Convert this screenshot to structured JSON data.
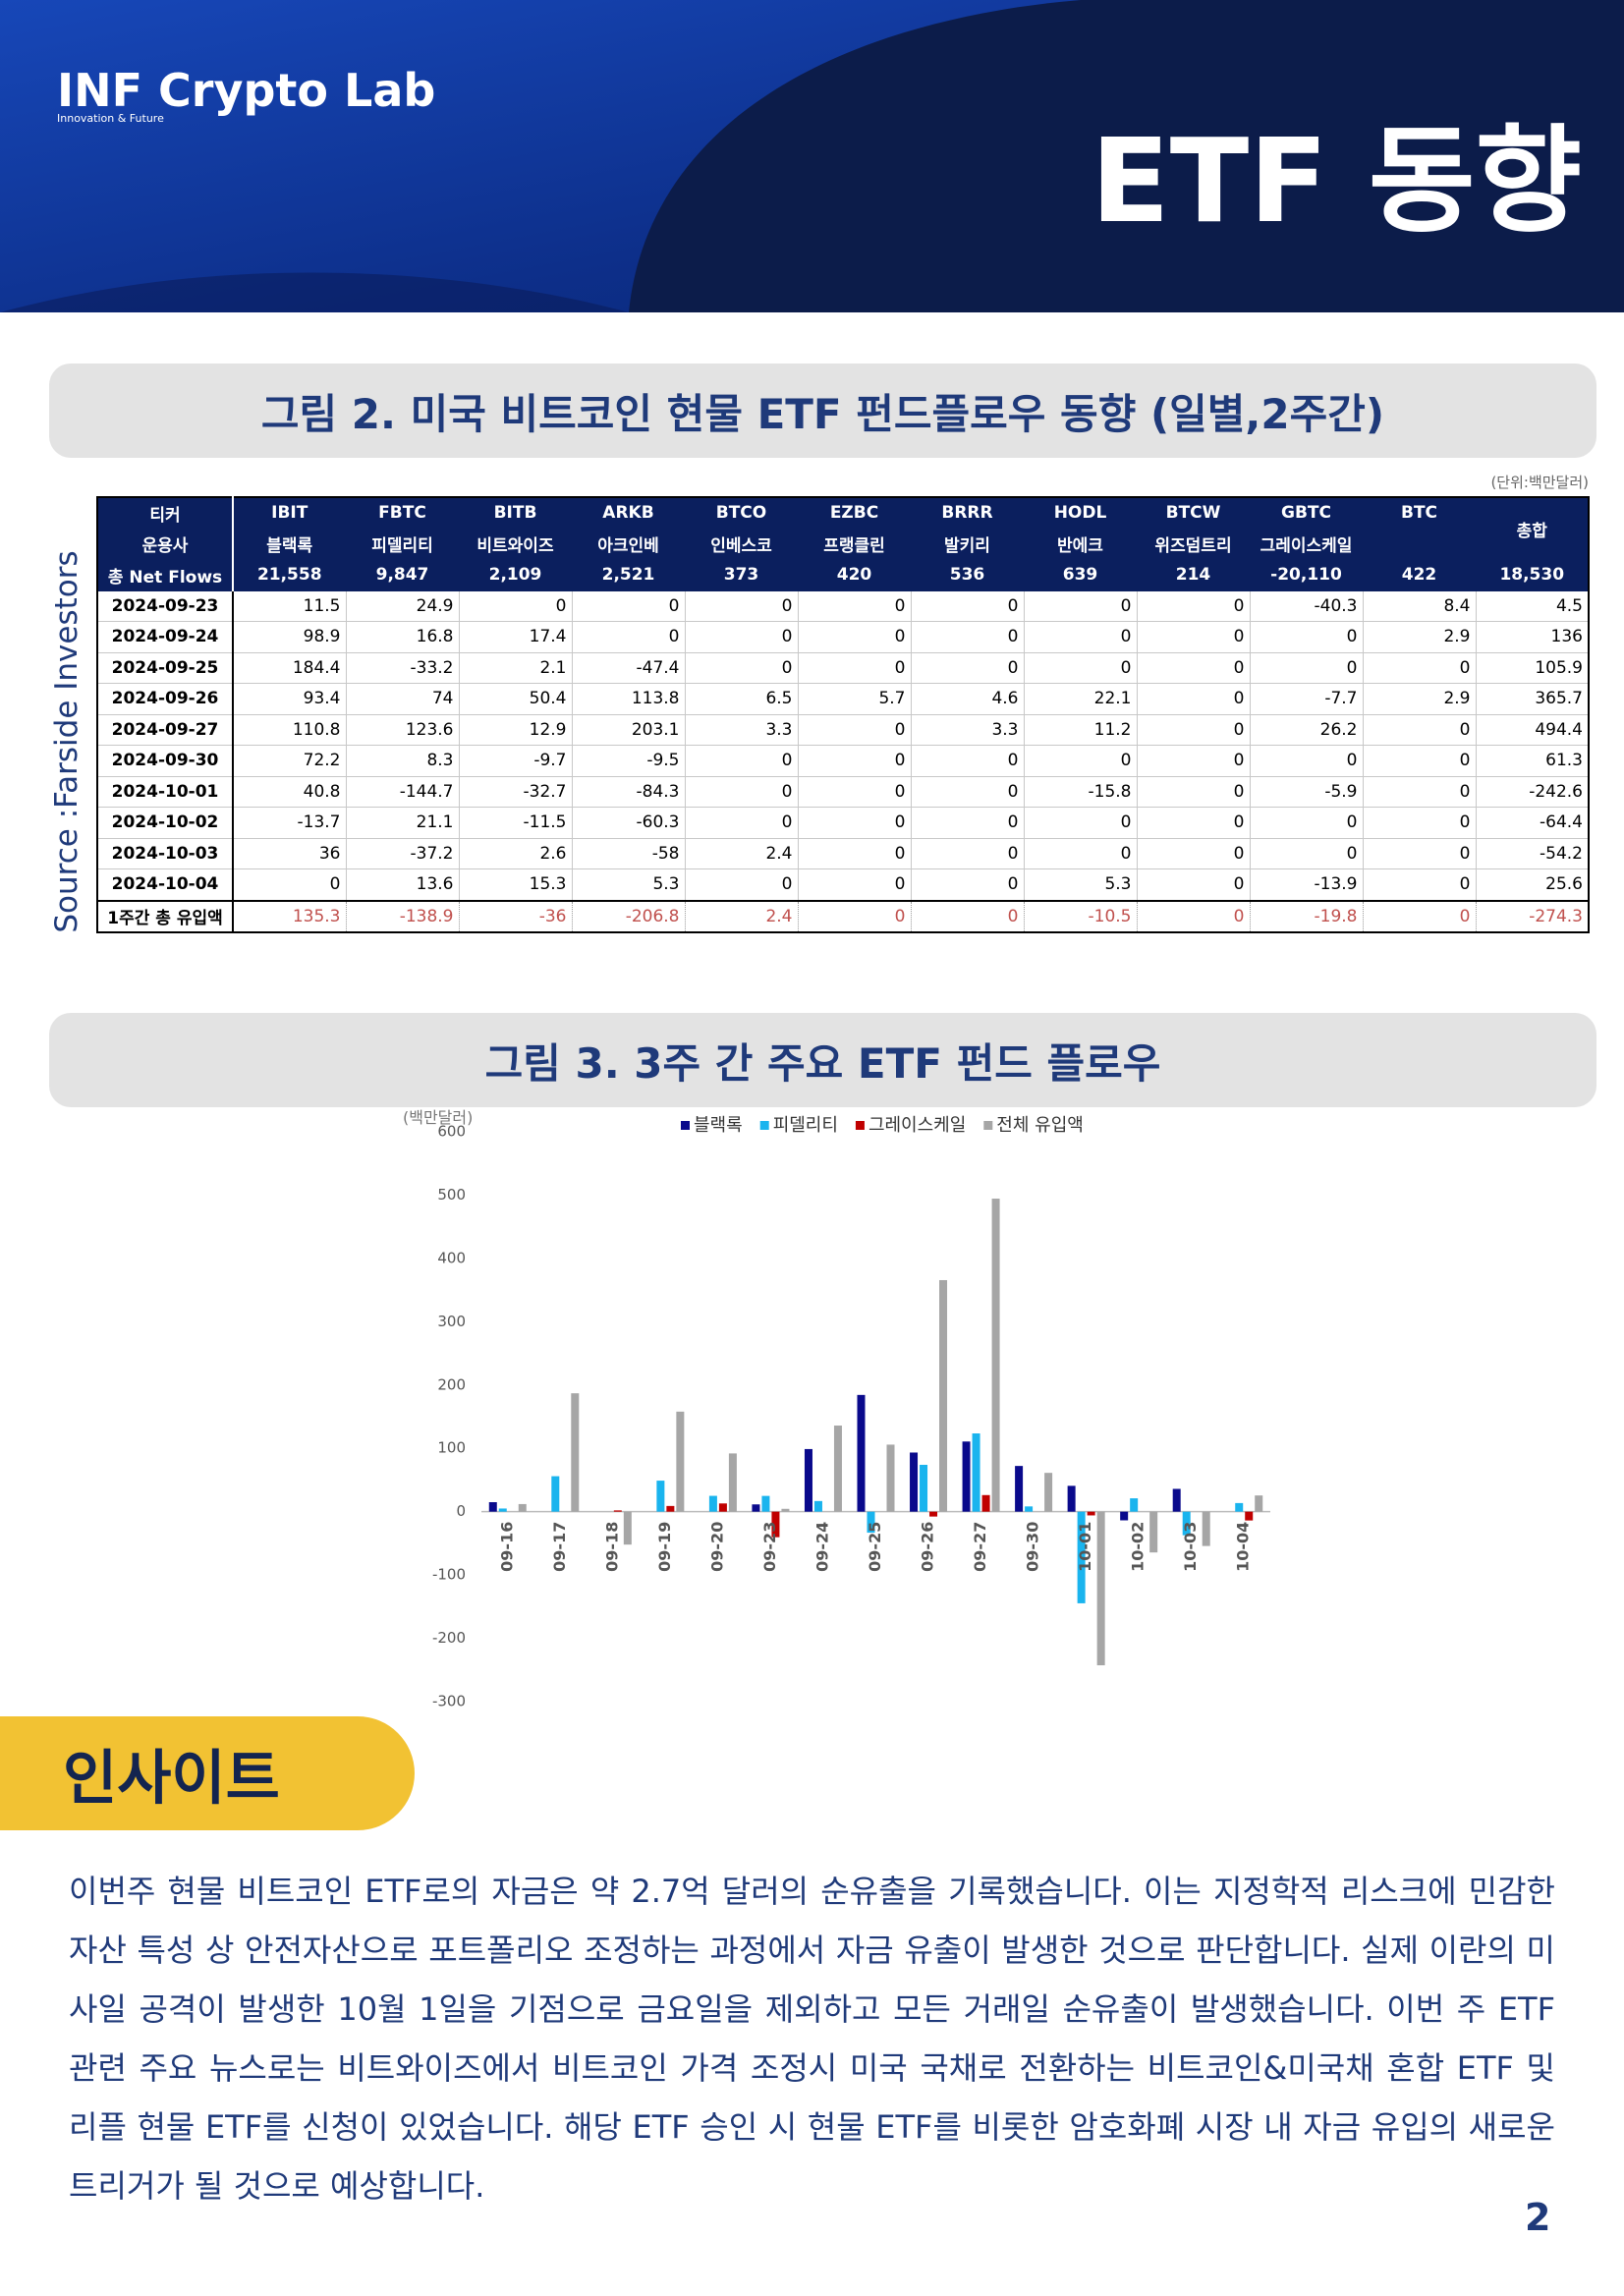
{
  "header": {
    "logo": "INF Crypto Lab",
    "logo_sub": "Innovation & Future",
    "title": "ETF 동향"
  },
  "figure2": {
    "caption": "그림 2.  미국 비트코인 현물 ETF 펀드플로우 동향 (일별,2주간)",
    "unit": "(단위:백만달러)",
    "source": "Source :Farside Investors",
    "table": {
      "ticker_label": "티커",
      "tickers": [
        "IBIT",
        "FBTC",
        "BITB",
        "ARKB",
        "BTCO",
        "EZBC",
        "BRRR",
        "HODL",
        "BTCW",
        "GBTC",
        "BTC"
      ],
      "total_label": "총합",
      "manager_label": "운용사",
      "managers": [
        "블랙록",
        "피델리티",
        "비트와이즈",
        "아크인베",
        "인베스코",
        "프랭클린",
        "발키리",
        "반에크",
        "위즈덤트리",
        "그레이스케일"
      ],
      "rows": [
        [
          "총 Net Flows",
          "21,558",
          "9,847",
          "2,109",
          "2,521",
          "373",
          "420",
          "536",
          "639",
          "214",
          "-20,110",
          "422",
          "18,530"
        ],
        [
          "2024-09-23",
          11.5,
          24.9,
          0,
          0,
          0,
          0,
          0,
          0,
          0,
          -40.3,
          8.4,
          4.5
        ],
        [
          "2024-09-24",
          98.9,
          16.8,
          17.4,
          0,
          0,
          0,
          0,
          0,
          0,
          0,
          2.9,
          136
        ],
        [
          "2024-09-25",
          184.4,
          -33.2,
          2.1,
          -47.4,
          0,
          0,
          0,
          0,
          0,
          0,
          0,
          105.9
        ],
        [
          "2024-09-26",
          93.4,
          74,
          50.4,
          113.8,
          6.5,
          5.7,
          4.6,
          22.1,
          0,
          -7.7,
          2.9,
          365.7
        ],
        [
          "2024-09-27",
          110.8,
          123.6,
          12.9,
          203.1,
          3.3,
          0,
          3.3,
          11.2,
          0,
          26.2,
          0,
          494.4
        ],
        [
          "2024-09-30",
          72.2,
          8.3,
          -9.7,
          -9.5,
          0,
          0,
          0,
          0,
          0,
          0,
          0,
          61.3
        ],
        [
          "2024-10-01",
          40.8,
          -144.7,
          -32.7,
          -84.3,
          0,
          0,
          0,
          -15.8,
          0,
          -5.9,
          0,
          -242.6
        ],
        [
          "2024-10-02",
          -13.7,
          21.1,
          -11.5,
          -60.3,
          0,
          0,
          0,
          0,
          0,
          0,
          0,
          -64.4
        ],
        [
          "2024-10-03",
          36,
          -37.2,
          2.6,
          -58,
          2.4,
          0,
          0,
          0,
          0,
          0,
          0,
          -54.2
        ],
        [
          "2024-10-04",
          0,
          13.6,
          15.3,
          5.3,
          0,
          0,
          0,
          5.3,
          0,
          -13.9,
          0,
          25.6
        ],
        [
          "1주간 총 유입액",
          135.3,
          -138.9,
          -36,
          -206.8,
          2.4,
          0,
          0,
          -10.5,
          0,
          -19.8,
          0,
          -274.3
        ]
      ]
    }
  },
  "figure3": {
    "caption": "그림 3.  3주 간 주요 ETF 펀드 플로우",
    "chart_data": {
      "type": "bar",
      "y_label": "(백만달러)",
      "categories": [
        "09-16",
        "09-17",
        "09-18",
        "09-19",
        "09-20",
        "09-23",
        "09-24",
        "09-25",
        "09-26",
        "09-27",
        "09-30",
        "10-01",
        "10-02",
        "10-03",
        "10-04"
      ],
      "series": [
        {
          "name": "블랙록",
          "color": "#0a0a8c",
          "values": [
            15,
            0,
            0,
            0,
            0,
            11.5,
            98.9,
            184.4,
            93.4,
            110.8,
            72.2,
            40.8,
            -13.7,
            36,
            0
          ]
        },
        {
          "name": "피델리티",
          "color": "#1ab4ee",
          "values": [
            5,
            56,
            0,
            49,
            25,
            24.9,
            16.8,
            -33.2,
            74,
            123.6,
            8.3,
            -144.7,
            21.1,
            -37.2,
            13.6
          ]
        },
        {
          "name": "그레이스케일",
          "color": "#c00000",
          "values": [
            0,
            0,
            2,
            9,
            13,
            -40.3,
            0,
            0,
            -7.7,
            26.2,
            0,
            -5.9,
            0,
            0,
            -13.9
          ]
        },
        {
          "name": "전체 유입액",
          "color": "#a6a6a6",
          "values": [
            12,
            187,
            -52,
            158,
            92,
            4.5,
            136,
            105.9,
            365.7,
            494.4,
            61.3,
            -242.6,
            -64.4,
            -54.2,
            25.6
          ]
        }
      ],
      "ylim": [
        -300,
        600
      ],
      "yticks": [
        -300,
        -200,
        -100,
        0,
        100,
        200,
        300,
        400,
        500,
        600
      ],
      "grid": false,
      "legend": "top"
    }
  },
  "insight": {
    "title": "인사이트",
    "body": "이번주 현물 비트코인 ETF로의 자금은 약 2.7억 달러의 순유출을 기록했습니다. 이는 지정학적 리스크에 민감한 자산 특성 상 안전자산으로 포트폴리오 조정하는 과정에서 자금 유출이 발생한 것으로 판단합니다. 실제 이란의 미사일 공격이 발생한 10월 1일을 기점으로 금요일을 제외하고 모든 거래일 순유출이 발생했습니다.  이번 주 ETF 관련 주요 뉴스로는 비트와이즈에서 비트코인 가격 조정시 미국 국채로 전환하는 비트코인&미국채 혼합 ETF 및 리플 현물 ETF를 신청이 있었습니다. 해당 ETF 승인 시 현물 ETF를 비롯한 암호화폐 시장 내 자금 유입의 새로운 트리거가 될 것으로 예상합니다."
  },
  "page_number": "2"
}
